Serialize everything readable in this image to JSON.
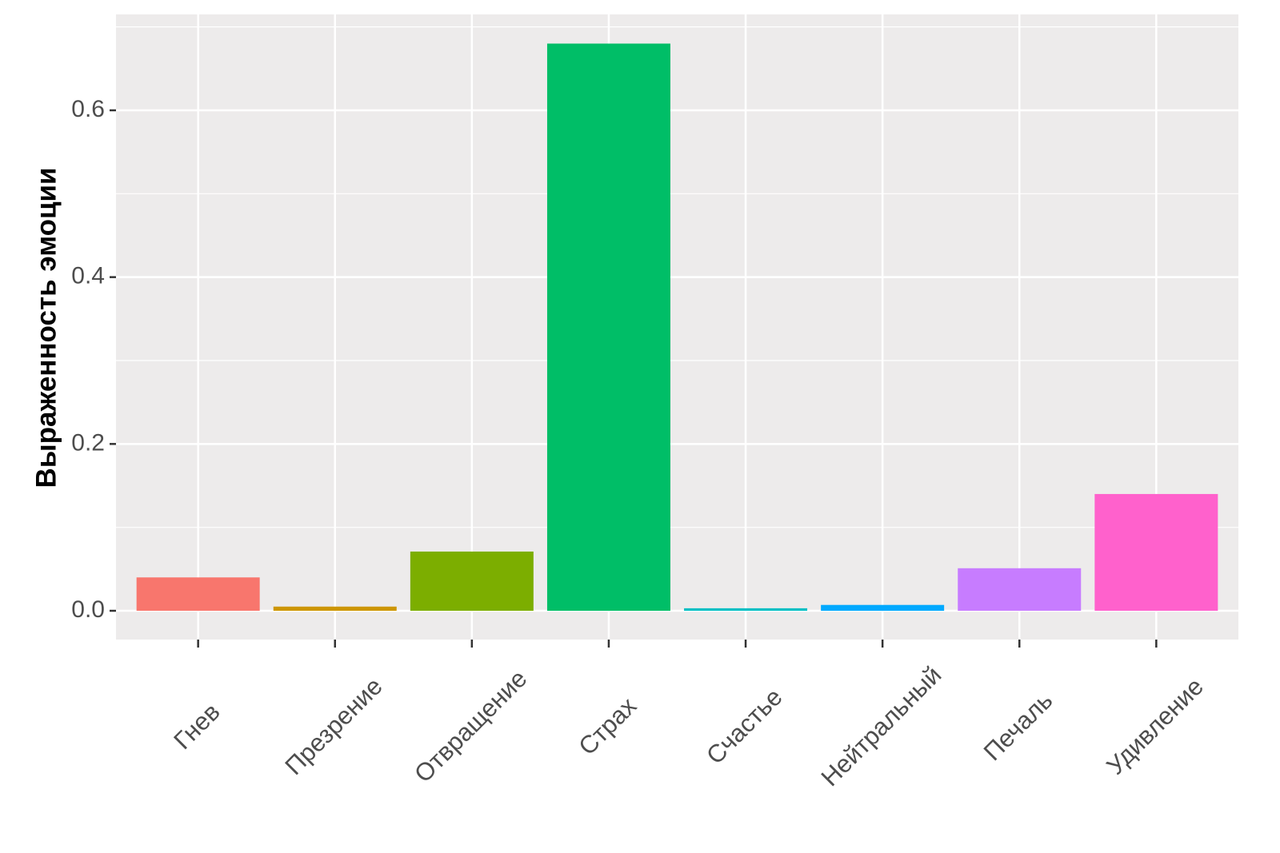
{
  "chart_data": {
    "type": "bar",
    "y_label": "Выраженность эмоции",
    "categories": [
      "Гнев",
      "Презрение",
      "Отвращение",
      "Страх",
      "Счастье",
      "Нейтральный",
      "Печаль",
      "Удивление"
    ],
    "values": [
      0.04,
      0.005,
      0.071,
      0.68,
      0.003,
      0.007,
      0.051,
      0.14
    ],
    "colors": [
      "#F8766D",
      "#CD9600",
      "#7CAE00",
      "#00BE67",
      "#00BFC4",
      "#00A9FF",
      "#C77CFF",
      "#FF61CC"
    ],
    "ylim": [
      -0.0345,
      0.715
    ],
    "yticks": [
      {
        "value": 0,
        "label": "0.0"
      },
      0.2,
      0.4,
      0.6
    ],
    "minor_yticks": [
      0.1,
      0.3,
      0.5,
      0.7
    ],
    "grid": true
  }
}
